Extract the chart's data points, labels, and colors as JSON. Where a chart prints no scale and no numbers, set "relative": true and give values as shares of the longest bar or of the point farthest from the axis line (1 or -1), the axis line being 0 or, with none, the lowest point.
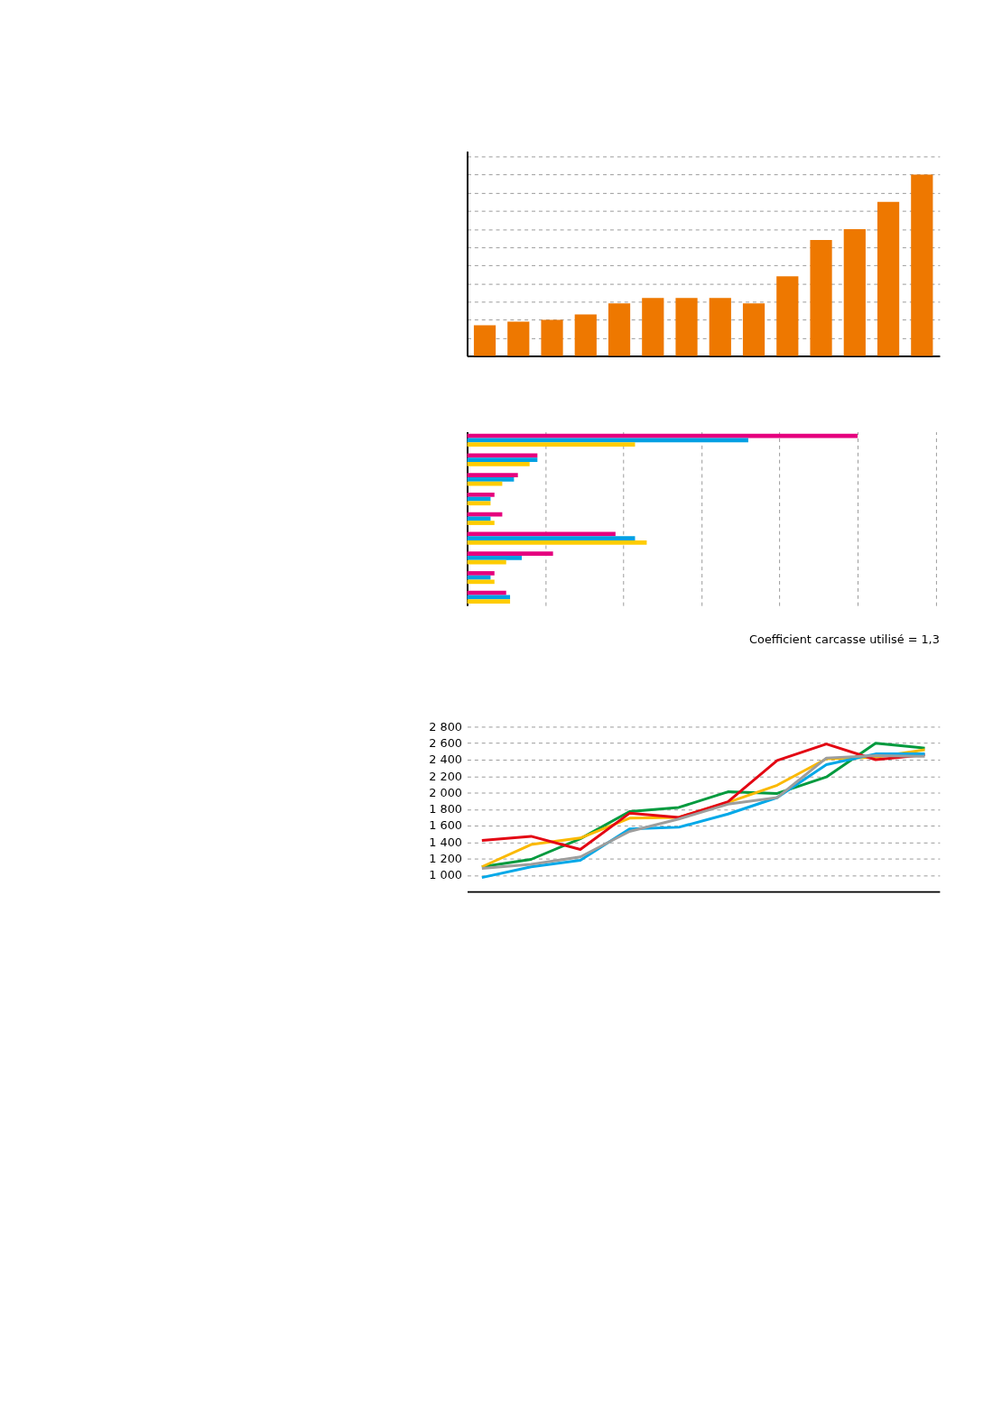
{
  "chart_data": [
    {
      "type": "bar",
      "relative": true,
      "grid": "y",
      "categories": [
        null,
        null,
        null,
        null,
        null,
        null,
        null,
        null,
        null,
        null,
        null,
        null,
        null,
        null
      ],
      "series": [
        {
          "color": "#ee7800",
          "values": [
            0.17,
            0.19,
            0.2,
            0.23,
            0.29,
            0.32,
            0.32,
            0.32,
            0.29,
            0.44,
            0.64,
            0.7,
            0.85,
            1
          ]
        }
      ]
    },
    {
      "type": "bar",
      "orientation": "horizontal",
      "relative": true,
      "grid": "x",
      "categories": [
        null,
        null,
        null,
        null,
        null,
        null,
        null,
        null,
        null
      ],
      "annotations": [
        "Coefficient carcasse utilisé = 1,3"
      ],
      "series": [
        {
          "color": "#e5007e",
          "values": [
            1,
            0.18,
            0.13,
            0.07,
            0.09,
            0.38,
            0.22,
            0.07,
            0.1
          ]
        },
        {
          "color": "#00a0e3",
          "values": [
            0.72,
            0.18,
            0.12,
            0.06,
            0.06,
            0.43,
            0.14,
            0.06,
            0.11
          ]
        },
        {
          "color": "#ffcc00",
          "values": [
            0.43,
            0.16,
            0.09,
            0.06,
            0.07,
            0.46,
            0.1,
            0.07,
            0.11
          ]
        }
      ]
    },
    {
      "type": "line",
      "grid": "y",
      "tick_labels": "y",
      "categories": [
        null,
        null,
        null,
        null,
        null,
        null,
        null,
        null,
        null,
        null
      ],
      "ylim": [
        800,
        2800
      ],
      "yticks": [
        {
          "value": 1000,
          "label": "1 000"
        },
        {
          "value": 1200,
          "label": "1 200"
        },
        {
          "value": 1400,
          "label": "1 400"
        },
        {
          "value": 1600,
          "label": "1 600"
        },
        {
          "value": 1800,
          "label": "1 800"
        },
        {
          "value": 2000,
          "label": "2 000"
        },
        {
          "value": 2200,
          "label": "2 200"
        },
        {
          "value": 2400,
          "label": "2 400"
        },
        {
          "value": 2600,
          "label": "2 600"
        },
        {
          "value": 2800,
          "label": "2 800"
        }
      ],
      "series": [
        {
          "color": "#009a3e",
          "values": [
            1100,
            1190,
            1440,
            1770,
            1820,
            2010,
            1990,
            2190,
            2600,
            2540
          ]
        },
        {
          "color": "#fbb900",
          "values": [
            1100,
            1370,
            1450,
            1690,
            1700,
            1880,
            2090,
            2410,
            2430,
            2520
          ]
        },
        {
          "color": "#e30613",
          "values": [
            1420,
            1470,
            1310,
            1750,
            1700,
            1890,
            2390,
            2590,
            2400,
            2460
          ]
        },
        {
          "color": "#00a8e8",
          "values": [
            970,
            1100,
            1180,
            1560,
            1580,
            1740,
            1940,
            2340,
            2470,
            2470
          ]
        },
        {
          "color": "#9d9d9c",
          "values": [
            1080,
            1130,
            1220,
            1530,
            1680,
            1860,
            1940,
            2420,
            2450,
            2440
          ]
        }
      ]
    }
  ]
}
